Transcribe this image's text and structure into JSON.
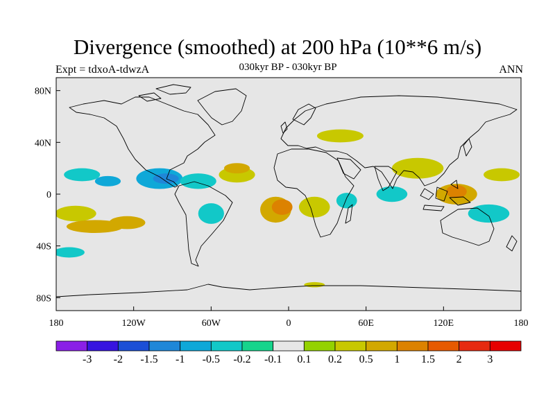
{
  "title": "Divergence (smoothed) at 200 hPa (10**6 m/s)",
  "subtitle": "030kyr BP - 030kyr BP",
  "left_label": "Expt = tdxoA-tdwzA",
  "right_label": "ANN",
  "map": {
    "lon_range": [
      -180,
      180
    ],
    "lat_range": [
      -90,
      90
    ],
    "background_color": "#e6e6e6",
    "lat_ticks": [
      {
        "value": 80,
        "label": "80N"
      },
      {
        "value": 40,
        "label": "40N"
      },
      {
        "value": 0,
        "label": "0"
      },
      {
        "value": -40,
        "label": "40S"
      },
      {
        "value": -80,
        "label": "80S"
      }
    ],
    "lon_ticks": [
      {
        "value": -180,
        "label": "180"
      },
      {
        "value": -120,
        "label": "120W"
      },
      {
        "value": -60,
        "label": "60W"
      },
      {
        "value": 0,
        "label": "0"
      },
      {
        "value": 60,
        "label": "60E"
      },
      {
        "value": 120,
        "label": "120E"
      },
      {
        "value": 180,
        "label": "180"
      }
    ]
  },
  "colorbar": {
    "colors": [
      "#8a1fe6",
      "#3714e0",
      "#1c4fd6",
      "#1f87d8",
      "#0fa8d8",
      "#12c8c8",
      "#16d48c",
      "#e6e6e6",
      "#94d200",
      "#c8c800",
      "#d2a800",
      "#dc8200",
      "#e65a00",
      "#e62a10",
      "#e60000"
    ],
    "labels": [
      "-3",
      "-2",
      "-1.5",
      "-1",
      "-0.5",
      "-0.2",
      "-0.1",
      "0.1",
      "0.2",
      "0.5",
      "1",
      "1.5",
      "2",
      "3"
    ]
  },
  "fields": [
    {
      "lon": -165,
      "lat": -15,
      "rx": 16,
      "ry": 6,
      "level": "0.2"
    },
    {
      "lon": -150,
      "lat": -25,
      "rx": 22,
      "ry": 5,
      "level": "0.5"
    },
    {
      "lon": -125,
      "lat": -22,
      "rx": 14,
      "ry": 5,
      "level": "0.5"
    },
    {
      "lon": -160,
      "lat": 15,
      "rx": 14,
      "ry": 5,
      "level": "-0.2"
    },
    {
      "lon": -140,
      "lat": 10,
      "rx": 10,
      "ry": 4,
      "level": "-0.5"
    },
    {
      "lon": -100,
      "lat": 12,
      "rx": 18,
      "ry": 8,
      "level": "-0.5"
    },
    {
      "lon": -95,
      "lat": 12,
      "rx": 10,
      "ry": 4,
      "level": "-1"
    },
    {
      "lon": -70,
      "lat": 10,
      "rx": 14,
      "ry": 6,
      "level": "-0.2"
    },
    {
      "lon": -60,
      "lat": -15,
      "rx": 10,
      "ry": 8,
      "level": "-0.2"
    },
    {
      "lon": -40,
      "lat": 15,
      "rx": 14,
      "ry": 6,
      "level": "0.2"
    },
    {
      "lon": -40,
      "lat": 20,
      "rx": 10,
      "ry": 4,
      "level": "0.5"
    },
    {
      "lon": -10,
      "lat": -12,
      "rx": 12,
      "ry": 10,
      "level": "0.5"
    },
    {
      "lon": -5,
      "lat": -10,
      "rx": 8,
      "ry": 6,
      "level": "1"
    },
    {
      "lon": 20,
      "lat": -10,
      "rx": 12,
      "ry": 8,
      "level": "0.2"
    },
    {
      "lon": 40,
      "lat": 45,
      "rx": 18,
      "ry": 5,
      "level": "0.2"
    },
    {
      "lon": 45,
      "lat": -5,
      "rx": 8,
      "ry": 6,
      "level": "-0.2"
    },
    {
      "lon": 80,
      "lat": 0,
      "rx": 12,
      "ry": 6,
      "level": "-0.2"
    },
    {
      "lon": 100,
      "lat": 20,
      "rx": 20,
      "ry": 8,
      "level": "0.2"
    },
    {
      "lon": 130,
      "lat": 0,
      "rx": 16,
      "ry": 8,
      "level": "0.5"
    },
    {
      "lon": 130,
      "lat": 2,
      "rx": 8,
      "ry": 5,
      "level": "1"
    },
    {
      "lon": 155,
      "lat": -15,
      "rx": 16,
      "ry": 7,
      "level": "-0.2"
    },
    {
      "lon": 165,
      "lat": 15,
      "rx": 14,
      "ry": 5,
      "level": "0.2"
    },
    {
      "lon": -170,
      "lat": -45,
      "rx": 12,
      "ry": 4,
      "level": "-0.2"
    },
    {
      "lon": 20,
      "lat": -70,
      "rx": 8,
      "ry": 2,
      "level": "0.2"
    }
  ]
}
